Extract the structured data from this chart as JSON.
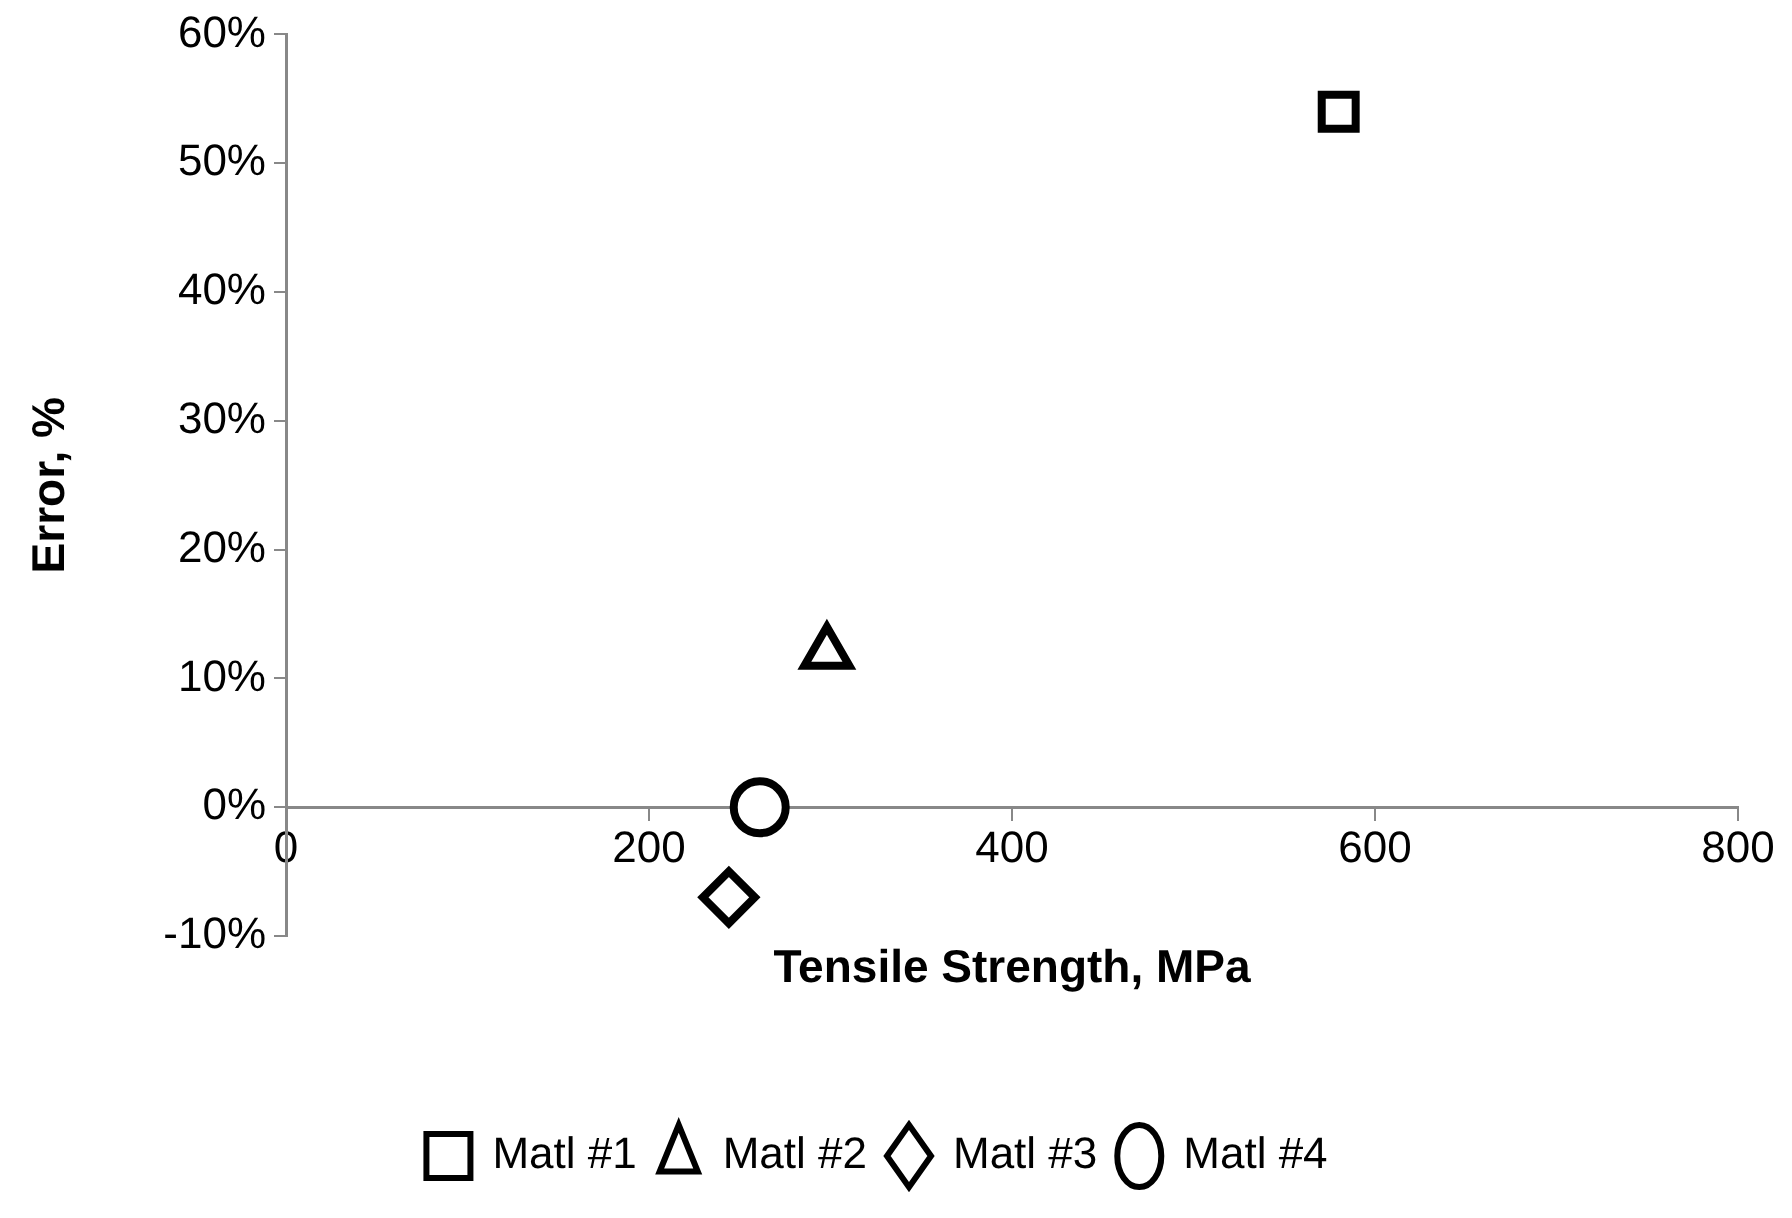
{
  "chart_data": {
    "type": "scatter",
    "xlabel": "Tensile Strength, MPa",
    "ylabel": "Error, %",
    "xlim": [
      0,
      800
    ],
    "xticks": [
      0,
      200,
      400,
      600,
      800
    ],
    "ylim": [
      -10,
      60
    ],
    "yticks": [
      {
        "value": -10,
        "label": "-10%"
      },
      {
        "value": 0,
        "label": "0%"
      },
      {
        "value": 10,
        "label": "10%"
      },
      {
        "value": 20,
        "label": "20%"
      },
      {
        "value": 30,
        "label": "30%"
      },
      {
        "value": 40,
        "label": "40%"
      },
      {
        "value": 50,
        "label": "50%"
      },
      {
        "value": 60,
        "label": "60%"
      }
    ],
    "grid": false,
    "legend": "bottom",
    "series": [
      {
        "name": "Matl #1",
        "color": "#000000",
        "marker": "square",
        "x": [
          580
        ],
        "values": [
          54
        ]
      },
      {
        "name": "Matl #2",
        "color": "#000000",
        "marker": "triangle",
        "x": [
          298
        ],
        "values": [
          12
        ]
      },
      {
        "name": "Matl #3",
        "color": "#000000",
        "marker": "diamond",
        "x": [
          244
        ],
        "values": [
          -7
        ]
      },
      {
        "name": "Matl #4",
        "color": "#000000",
        "marker": "circle",
        "x": [
          261
        ],
        "values": [
          0
        ]
      }
    ]
  }
}
